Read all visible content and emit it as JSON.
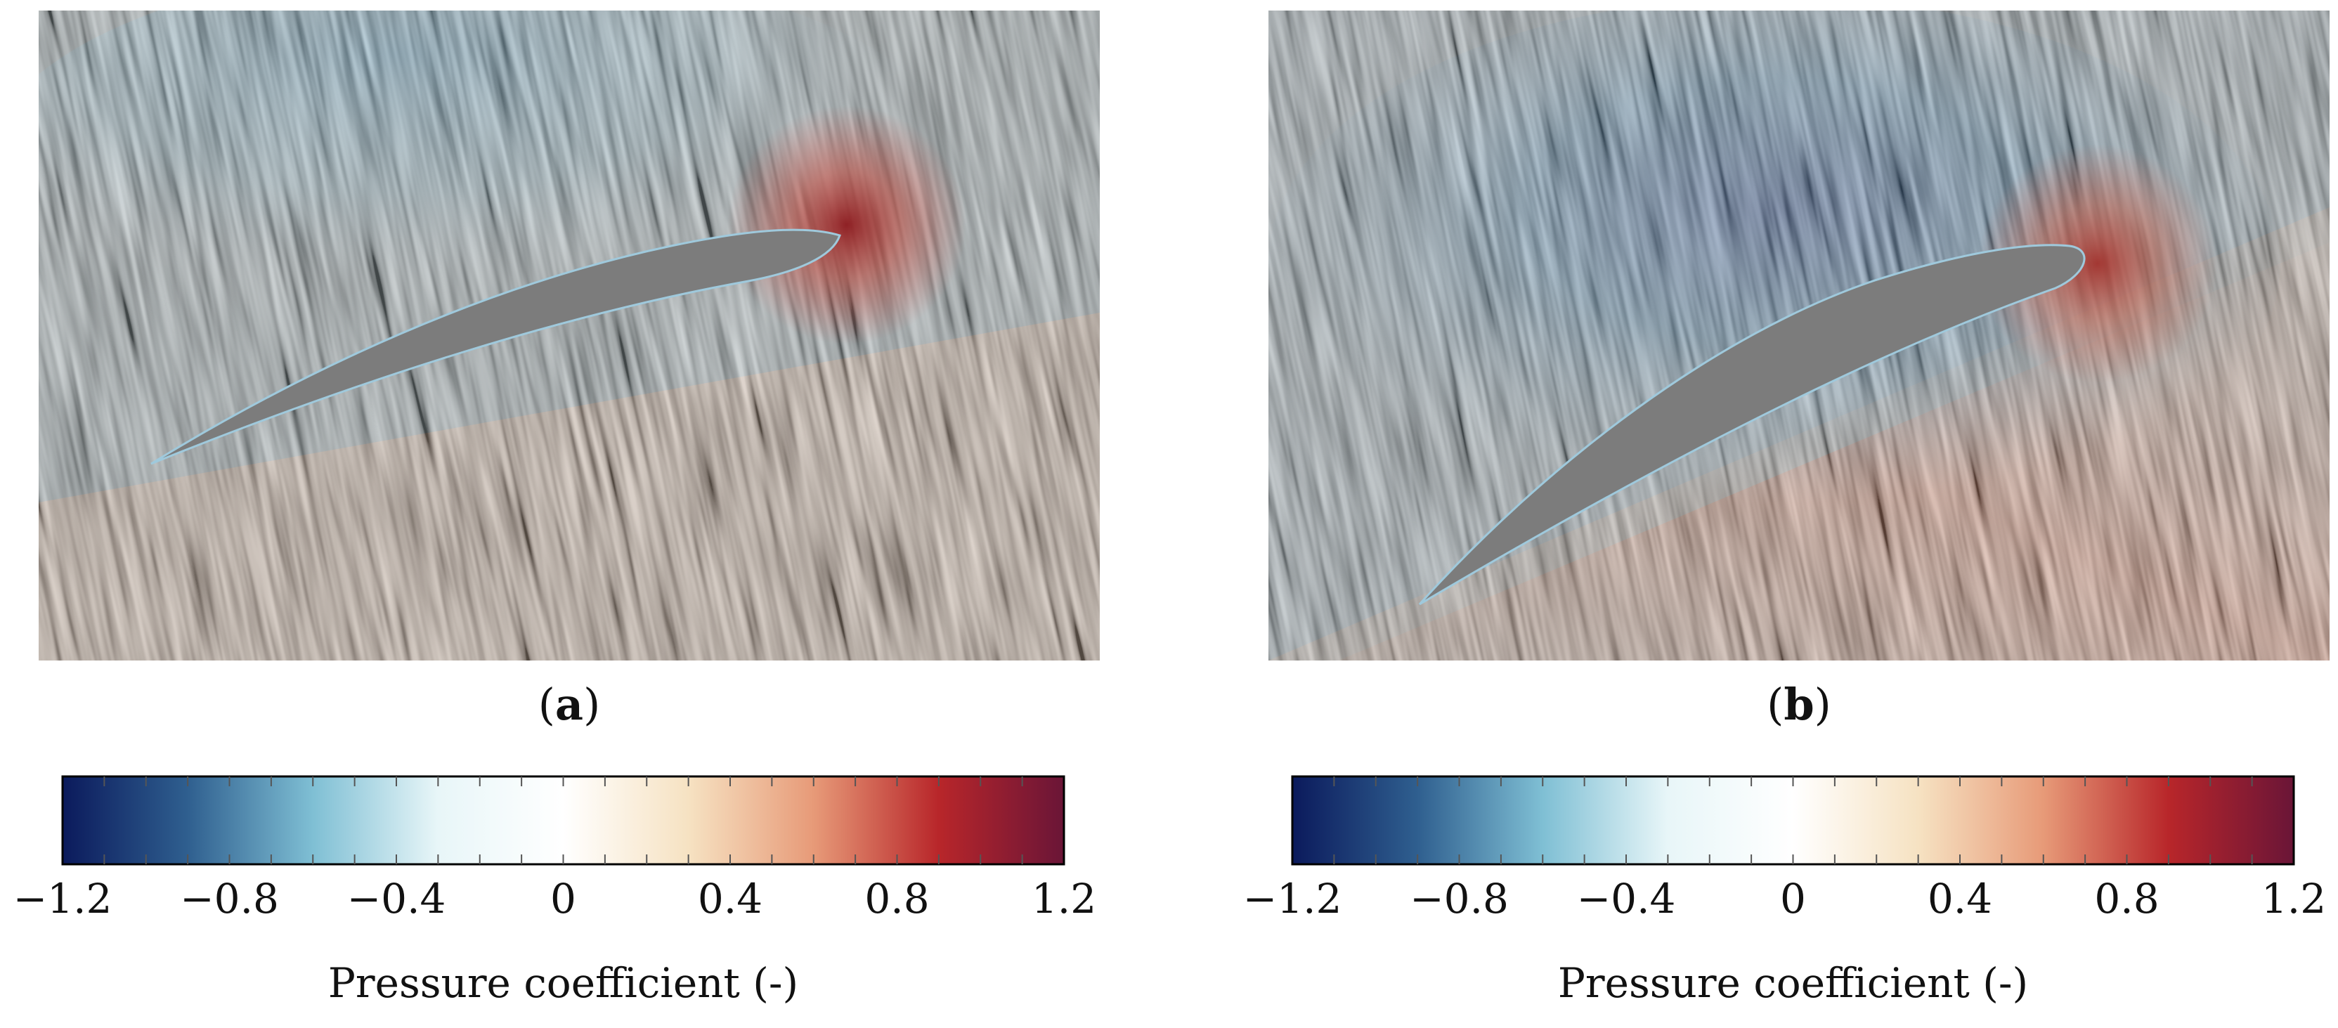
{
  "panels": [
    {
      "id": "a",
      "label_open": "(",
      "label_letter": "a",
      "label_close": ")",
      "colorbar": {
        "title": "Pressure coefficient (-)",
        "min": -1.2,
        "max": 1.2,
        "ticks": [
          "−1.2",
          "−0.8",
          "−0.4",
          "0",
          "0.4",
          "0.8",
          "1.2"
        ]
      }
    },
    {
      "id": "b",
      "label_open": "(",
      "label_letter": "b",
      "label_close": ")",
      "colorbar": {
        "title": "Pressure coefficient (-)",
        "min": -1.2,
        "max": 1.2,
        "ticks": [
          "−1.2",
          "−0.8",
          "−0.4",
          "0",
          "0.4",
          "0.8",
          "1.2"
        ]
      }
    }
  ],
  "colormap": [
    "#0b1a5c",
    "#2f5f8f",
    "#7fbfd4",
    "#e8f6f8",
    "#ffffff",
    "#f6e2c2",
    "#e79a78",
    "#b8262a",
    "#6a1537"
  ],
  "colors": {
    "airfoil": "#7a7a7a",
    "suction_side": "#6f95aa",
    "pressure_side": "#b39a86",
    "background": "#a8a199"
  }
}
